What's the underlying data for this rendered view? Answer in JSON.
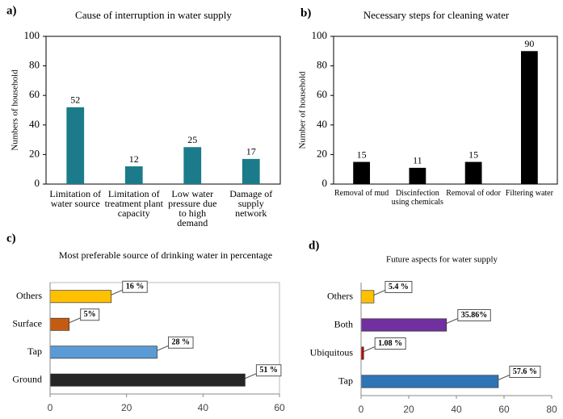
{
  "chart_data": [
    {
      "type": "bar",
      "panel": "a)",
      "title": "Cause of interruption in water supply",
      "ylabel": "Numbers of household",
      "categories": [
        "Limitation of water source",
        "Limitation of treatment plant capacity",
        "Low water pressure due to high demand",
        "Damage of supply network"
      ],
      "values": [
        52,
        12,
        25,
        17
      ],
      "color": "#1b7b8a",
      "ylim": [
        0,
        100
      ],
      "yticks": [
        0,
        20,
        40,
        60,
        80,
        100
      ]
    },
    {
      "type": "bar",
      "panel": "b)",
      "title": "Necessary steps for cleaning water",
      "ylabel": "Number of household",
      "categories": [
        "Removal of mud",
        "Discinfection using chemicals",
        "Removal of odor",
        "Filtering water"
      ],
      "values": [
        15,
        11,
        15,
        90
      ],
      "color": "#000000",
      "ylim": [
        0,
        100
      ],
      "yticks": [
        0,
        20,
        40,
        60,
        80,
        100
      ]
    },
    {
      "type": "hbar",
      "panel": "c)",
      "title": "Most preferable source of drinking water in percentage",
      "categories": [
        "Ground",
        "Tap",
        "Surface",
        "Others"
      ],
      "values": [
        51,
        28,
        5,
        16
      ],
      "value_labels": [
        "51 %",
        "28 %",
        "5%",
        "16 %"
      ],
      "colors": [
        "#262626",
        "#5b9bd5",
        "#c55a11",
        "#ffc000"
      ],
      "xlim": [
        0,
        60
      ],
      "xticks": [
        0,
        20,
        40,
        60
      ]
    },
    {
      "type": "hbar",
      "panel": "d)",
      "title": "Future aspects for water supply",
      "categories": [
        "Tap",
        "Ubiquitous",
        "Both",
        "Others"
      ],
      "values": [
        57.6,
        1.08,
        35.86,
        5.4
      ],
      "value_labels": [
        "57.6 %",
        "1.08 %",
        "35.86%",
        "5.4 %"
      ],
      "colors": [
        "#2e75b6",
        "#c00000",
        "#7030a0",
        "#ffc000"
      ],
      "xlim": [
        0,
        80
      ],
      "xticks": [
        0,
        20,
        40,
        60,
        80
      ]
    }
  ]
}
